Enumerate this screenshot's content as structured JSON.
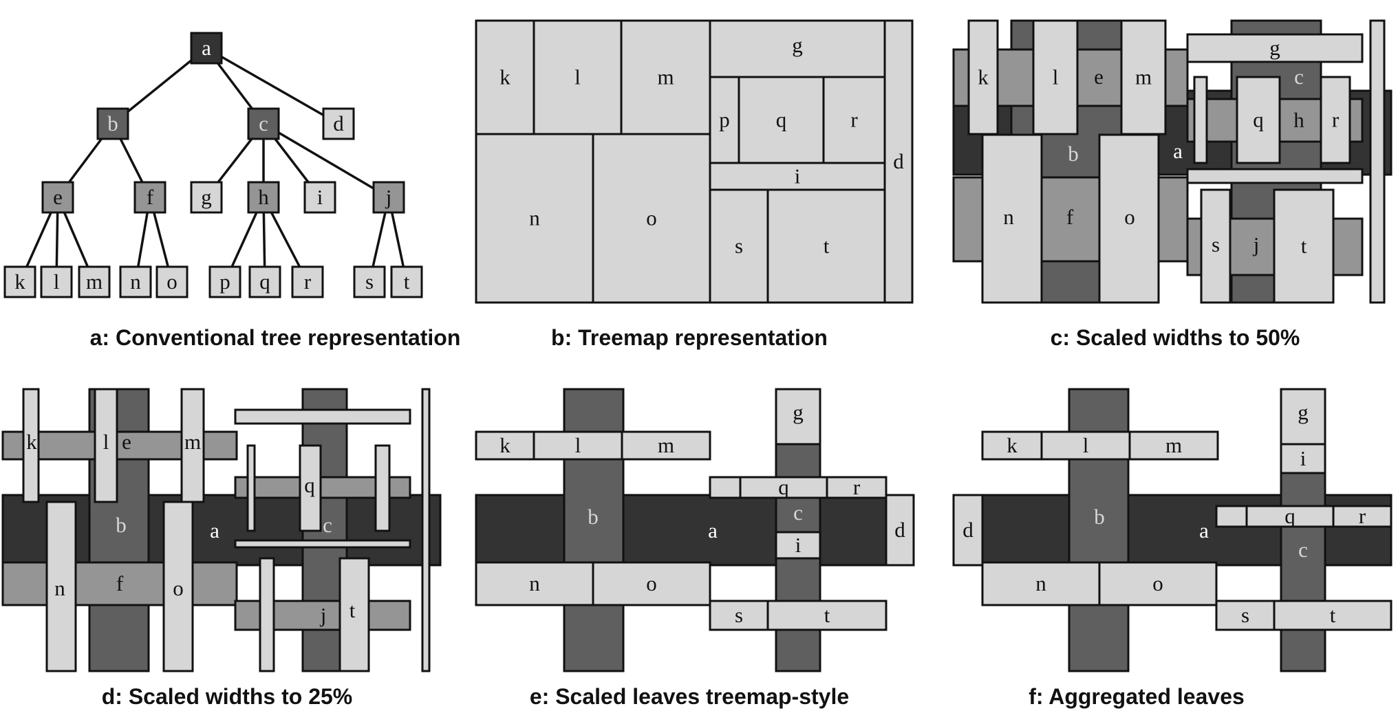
{
  "colors": {
    "level0": "#333333",
    "level1": "#5f5f5f",
    "level2": "#959595",
    "leaf": "#d6d6d6",
    "stroke": "#111111"
  },
  "panels": [
    {
      "id": "a",
      "caption": "a: Conventional tree representation"
    },
    {
      "id": "b",
      "caption": "b: Treemap representation"
    },
    {
      "id": "c",
      "caption": "c: Scaled widths to 50%"
    },
    {
      "id": "d",
      "caption": "d: Scaled widths to 25%"
    },
    {
      "id": "e",
      "caption": "e: Scaled leaves treemap-style"
    },
    {
      "id": "f",
      "caption": "f: Aggregated leaves"
    }
  ],
  "tree": {
    "nodes": [
      {
        "label": "a",
        "level": 0
      },
      {
        "label": "b",
        "level": 1,
        "parent": "a"
      },
      {
        "label": "c",
        "level": 1,
        "parent": "a"
      },
      {
        "label": "d",
        "level": 3,
        "parent": "a"
      },
      {
        "label": "e",
        "level": 2,
        "parent": "b"
      },
      {
        "label": "f",
        "level": 2,
        "parent": "b"
      },
      {
        "label": "g",
        "level": 3,
        "parent": "c"
      },
      {
        "label": "h",
        "level": 2,
        "parent": "c"
      },
      {
        "label": "i",
        "level": 3,
        "parent": "c"
      },
      {
        "label": "j",
        "level": 2,
        "parent": "c"
      },
      {
        "label": "k",
        "level": 3,
        "parent": "e"
      },
      {
        "label": "l",
        "level": 3,
        "parent": "e"
      },
      {
        "label": "m",
        "level": 3,
        "parent": "e"
      },
      {
        "label": "n",
        "level": 3,
        "parent": "f"
      },
      {
        "label": "o",
        "level": 3,
        "parent": "f"
      },
      {
        "label": "p",
        "level": 3,
        "parent": "h"
      },
      {
        "label": "q",
        "level": 3,
        "parent": "h"
      },
      {
        "label": "r",
        "level": 3,
        "parent": "h"
      },
      {
        "label": "s",
        "level": 3,
        "parent": "j"
      },
      {
        "label": "t",
        "level": 3,
        "parent": "j"
      }
    ]
  }
}
